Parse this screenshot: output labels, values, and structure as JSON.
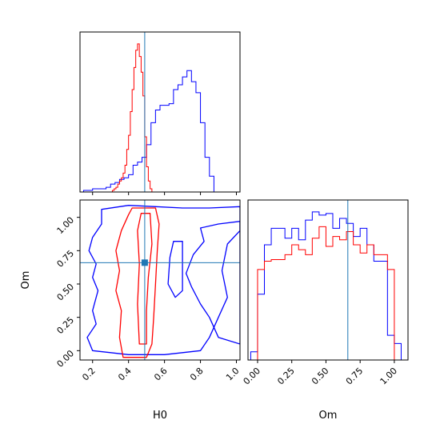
{
  "chart_data": [
    {
      "type": "histogram",
      "panel": "top-left",
      "parameter": "H0",
      "xlim": [
        0.13,
        1.02
      ],
      "truth": 0.49,
      "truth_color": "#1f77b4",
      "series": [
        {
          "color": "#0000ff",
          "bin_width": 0.025,
          "bins_start": 0.15,
          "values": [
            1,
            1,
            2,
            2,
            2,
            3,
            5,
            6,
            8,
            9,
            11,
            17,
            19,
            22,
            30,
            44,
            52,
            55,
            55,
            56,
            65,
            68,
            73,
            77,
            70,
            63,
            44,
            22,
            10
          ]
        },
        {
          "color": "#ff0000",
          "bin_width": 0.01,
          "bins_start": 0.31,
          "values": [
            1,
            2,
            3,
            5,
            7,
            9,
            12,
            17,
            27,
            36,
            51,
            65,
            79,
            90,
            94,
            86,
            76,
            61,
            35,
            16,
            7,
            2
          ]
        }
      ]
    },
    {
      "type": "histogram",
      "panel": "bottom-right",
      "parameter": "Om",
      "xlabel": "Om",
      "xlim": [
        -0.07,
        1.1
      ],
      "xticks": [
        "0.00",
        "0.25",
        "0.50",
        "0.75",
        "1.00"
      ],
      "xtick_values": [
        0,
        0.25,
        0.5,
        0.75,
        1.0
      ],
      "truth": 0.66,
      "truth_color": "#1f77b4",
      "series": [
        {
          "color": "#0000ff",
          "bin_width": 0.05,
          "bins_start": -0.05,
          "values": [
            5,
            40,
            70,
            80,
            80,
            74,
            80,
            73,
            85,
            90,
            88,
            89,
            80,
            86,
            83,
            75,
            80,
            70,
            60,
            60,
            15,
            10
          ]
        },
        {
          "color": "#ff0000",
          "bin_width": 0.05,
          "bins_start": 0.0,
          "values": [
            55,
            60,
            61,
            61,
            64,
            70,
            67,
            64,
            74,
            81,
            69,
            75,
            73,
            78,
            70,
            65,
            70,
            64,
            64,
            55
          ]
        }
      ]
    },
    {
      "type": "contour",
      "panel": "bottom-left",
      "xlabel": "H0",
      "ylabel": "Om",
      "xlim": [
        0.13,
        1.02
      ],
      "ylim": [
        -0.07,
        1.13
      ],
      "xticks": [
        "0.2",
        "0.4",
        "0.6",
        "0.8",
        "1.0"
      ],
      "xtick_values": [
        0.2,
        0.4,
        0.6,
        0.8,
        1.0
      ],
      "yticks": [
        "0.00",
        "0.25",
        "0.50",
        "0.75",
        "1.00"
      ],
      "ytick_values": [
        0,
        0.25,
        0.5,
        0.75,
        1.0
      ],
      "truth": [
        0.49,
        0.66
      ],
      "truth_color": "#1f77b4",
      "contours": [
        {
          "color": "#0000ff",
          "points": [
            [
              0.25,
              1.06
            ],
            [
              0.4,
              1.09
            ],
            [
              0.55,
              1.08
            ],
            [
              0.7,
              1.07
            ],
            [
              0.85,
              1.07
            ],
            [
              1.02,
              1.08
            ],
            [
              1.02,
              0.9
            ],
            [
              0.95,
              0.8
            ],
            [
              0.92,
              0.6
            ],
            [
              0.95,
              0.4
            ],
            [
              0.9,
              0.25
            ],
            [
              0.85,
              0.1
            ],
            [
              0.8,
              0.0
            ],
            [
              0.6,
              -0.03
            ],
            [
              0.4,
              -0.03
            ],
            [
              0.2,
              0.0
            ],
            [
              0.17,
              0.1
            ],
            [
              0.22,
              0.2
            ],
            [
              0.2,
              0.3
            ],
            [
              0.23,
              0.45
            ],
            [
              0.2,
              0.55
            ],
            [
              0.22,
              0.65
            ],
            [
              0.18,
              0.75
            ],
            [
              0.2,
              0.85
            ],
            [
              0.25,
              0.95
            ],
            [
              0.25,
              1.06
            ]
          ]
        },
        {
          "color": "#0000ff",
          "points": [
            [
              0.8,
              0.92
            ],
            [
              0.9,
              0.95
            ],
            [
              1.02,
              0.97
            ],
            [
              1.02,
              0.05
            ],
            [
              0.9,
              0.1
            ],
            [
              0.85,
              0.25
            ],
            [
              0.8,
              0.35
            ],
            [
              0.75,
              0.48
            ],
            [
              0.72,
              0.58
            ],
            [
              0.76,
              0.72
            ],
            [
              0.82,
              0.82
            ],
            [
              0.8,
              0.92
            ]
          ]
        },
        {
          "color": "#ff0000",
          "points": [
            [
              0.42,
              1.07
            ],
            [
              0.55,
              1.07
            ],
            [
              0.57,
              0.95
            ],
            [
              0.56,
              0.75
            ],
            [
              0.55,
              0.5
            ],
            [
              0.54,
              0.25
            ],
            [
              0.53,
              0.05
            ],
            [
              0.5,
              -0.05
            ],
            [
              0.37,
              -0.05
            ],
            [
              0.35,
              0.1
            ],
            [
              0.36,
              0.3
            ],
            [
              0.33,
              0.45
            ],
            [
              0.35,
              0.6
            ],
            [
              0.33,
              0.75
            ],
            [
              0.36,
              0.9
            ],
            [
              0.4,
              1.02
            ],
            [
              0.42,
              1.07
            ]
          ]
        },
        {
          "color": "#ff0000",
          "points": [
            [
              0.47,
              1.03
            ],
            [
              0.52,
              1.03
            ],
            [
              0.53,
              0.8
            ],
            [
              0.51,
              0.55
            ],
            [
              0.5,
              0.3
            ],
            [
              0.5,
              0.05
            ],
            [
              0.46,
              0.05
            ],
            [
              0.45,
              0.35
            ],
            [
              0.46,
              0.65
            ],
            [
              0.45,
              0.9
            ],
            [
              0.47,
              1.03
            ]
          ]
        },
        {
          "color": "#0000ff",
          "points": [
            [
              0.65,
              0.82
            ],
            [
              0.7,
              0.82
            ],
            [
              0.7,
              0.45
            ],
            [
              0.66,
              0.4
            ],
            [
              0.62,
              0.5
            ],
            [
              0.63,
              0.7
            ],
            [
              0.65,
              0.82
            ]
          ]
        }
      ]
    }
  ]
}
